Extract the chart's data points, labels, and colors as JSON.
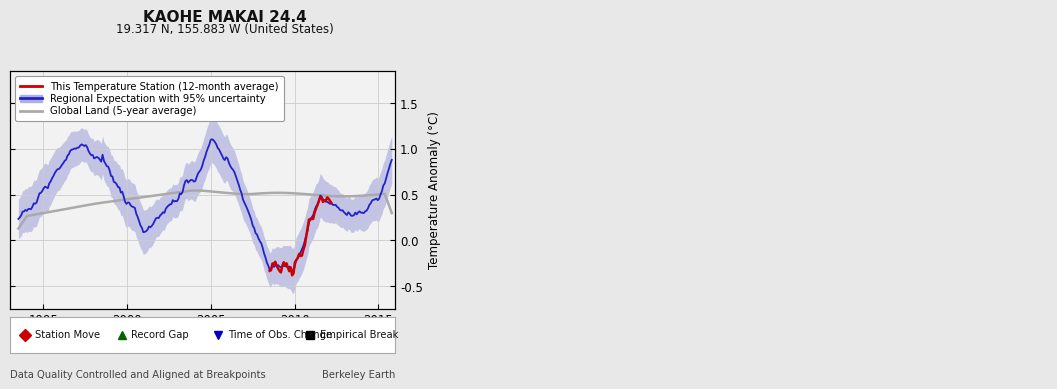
{
  "title": "KAOHE MAKAI 24.4",
  "subtitle": "19.317 N, 155.883 W (United States)",
  "ylabel": "Temperature Anomaly (°C)",
  "xlabel_left": "Data Quality Controlled and Aligned at Breakpoints",
  "xlabel_right": "Berkeley Earth",
  "xlim": [
    1993.0,
    2016.0
  ],
  "ylim": [
    -0.75,
    1.85
  ],
  "yticks": [
    -0.5,
    0.0,
    0.5,
    1.0,
    1.5
  ],
  "xticks": [
    1995,
    2000,
    2005,
    2010,
    2015
  ],
  "bg_color": "#e8e8e8",
  "plot_bg_color": "#f2f2f2",
  "legend_labels": [
    "This Temperature Station (12-month average)",
    "Regional Expectation with 95% uncertainty",
    "Global Land (5-year average)"
  ],
  "legend_colors": [
    "#cc0000",
    "#2222cc",
    "#aaaaaa"
  ],
  "fill_color": "#b0b0dd",
  "marker_legend": [
    {
      "label": "Station Move",
      "color": "#cc0000",
      "marker": "D"
    },
    {
      "label": "Record Gap",
      "color": "#006600",
      "marker": "^"
    },
    {
      "label": "Time of Obs. Change",
      "color": "#0000cc",
      "marker": "v"
    },
    {
      "label": "Empirical Break",
      "color": "#000000",
      "marker": "s"
    }
  ]
}
